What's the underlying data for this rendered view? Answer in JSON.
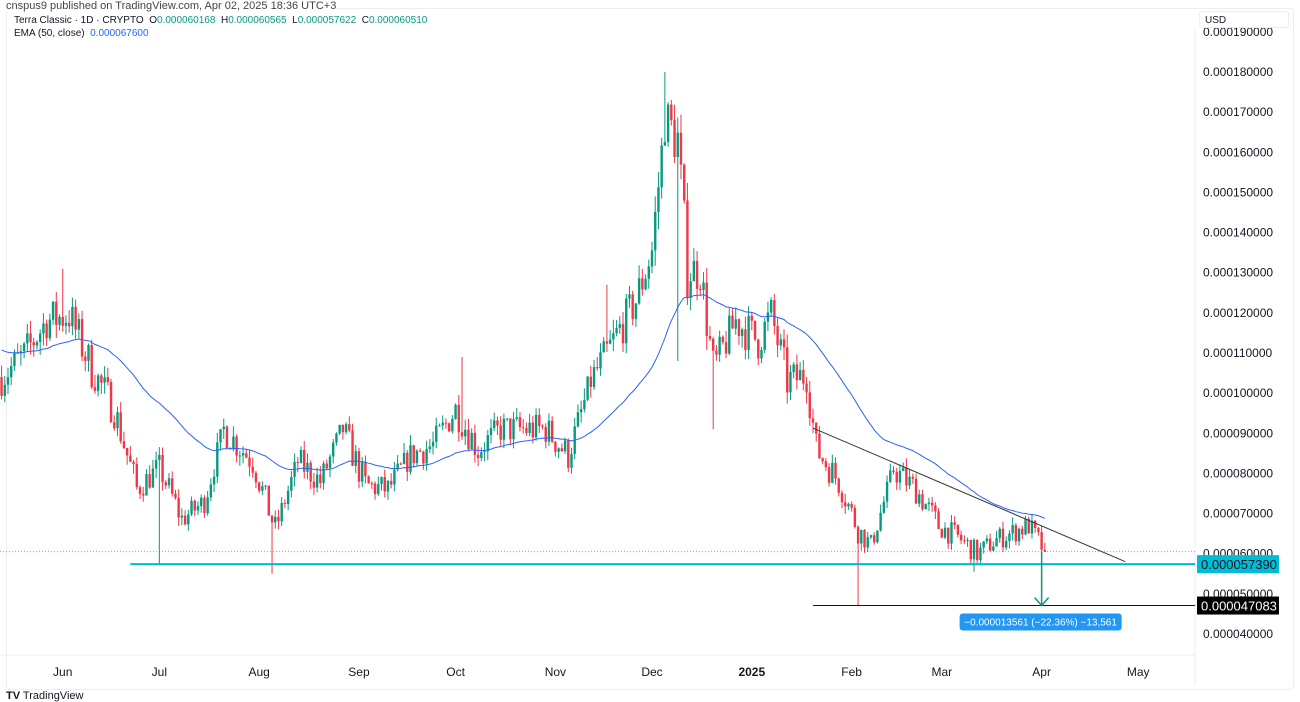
{
  "published": "cnspus9 published on TradingView.com, Apr 02, 2025 18:36 UTC+3",
  "legend": {
    "symbol": "Terra Classic · 1D · CRYPTO",
    "o_label": "O",
    "o": "0.000060168",
    "h_label": "H",
    "h": "0.000060565",
    "l_label": "L",
    "l": "0.000057622",
    "c_label": "C",
    "c": "0.000060510",
    "ema_label": "EMA (50, close)",
    "ema": "0.000067600"
  },
  "currency": "USD",
  "brand": "TradingView",
  "colors": {
    "up": "#089981",
    "down": "#f23645",
    "ema": "#2962ff",
    "support": "#00bcd4",
    "measure": "#2196f3"
  },
  "chart_data": {
    "type": "candlestick",
    "unit": "1e-6 USD",
    "y_ticks": [
      "0.000040000",
      "0.000050000",
      "0.000060000",
      "0.000070000",
      "0.000080000",
      "0.000090000",
      "0.000100000",
      "0.000110000",
      "0.000120000",
      "0.000130000",
      "0.000140000",
      "0.000150000",
      "0.000160000",
      "0.000170000",
      "0.000180000",
      "0.000190000"
    ],
    "ylim": [
      37,
      190
    ],
    "x_labels": [
      {
        "label": "Jun",
        "date": "2024-06-01"
      },
      {
        "label": "Jul",
        "date": "2024-07-01"
      },
      {
        "label": "Aug",
        "date": "2024-08-01"
      },
      {
        "label": "Sep",
        "date": "2024-09-01"
      },
      {
        "label": "Oct",
        "date": "2024-10-01"
      },
      {
        "label": "Nov",
        "date": "2024-11-01"
      },
      {
        "label": "Dec",
        "date": "2024-12-01"
      },
      {
        "label": "2025",
        "date": "2025-01-01"
      },
      {
        "label": "Feb",
        "date": "2025-02-01"
      },
      {
        "label": "Mar",
        "date": "2025-03-01"
      },
      {
        "label": "Apr",
        "date": "2025-04-01"
      },
      {
        "label": "May",
        "date": "2025-05-01"
      }
    ],
    "close_anchors": [
      [
        "2024-05-13",
        104
      ],
      [
        "2024-05-20",
        109.5
      ],
      [
        "2024-05-27",
        118
      ],
      [
        "2024-06-03",
        119.5
      ],
      [
        "2024-06-10",
        106
      ],
      [
        "2024-06-17",
        96
      ],
      [
        "2024-06-24",
        76
      ],
      [
        "2024-07-01",
        81.5
      ],
      [
        "2024-07-08",
        68.5
      ],
      [
        "2024-07-15",
        73
      ],
      [
        "2024-07-21",
        91
      ],
      [
        "2024-07-30",
        83
      ],
      [
        "2024-08-06",
        66
      ],
      [
        "2024-08-13",
        83
      ],
      [
        "2024-08-20",
        78
      ],
      [
        "2024-08-27",
        91
      ],
      [
        "2024-09-03",
        77
      ],
      [
        "2024-09-10",
        76
      ],
      [
        "2024-09-17",
        84.5
      ],
      [
        "2024-09-24",
        87
      ],
      [
        "2024-10-01",
        96
      ],
      [
        "2024-10-08",
        86
      ],
      [
        "2024-10-15",
        91
      ],
      [
        "2024-10-22",
        91
      ],
      [
        "2024-10-29",
        91
      ],
      [
        "2024-11-05",
        84.5
      ],
      [
        "2024-11-12",
        103
      ],
      [
        "2024-11-19",
        113
      ],
      [
        "2024-11-26",
        123
      ],
      [
        "2024-12-01",
        135.5
      ],
      [
        "2024-12-05",
        168
      ],
      [
        "2024-12-09",
        163
      ],
      [
        "2024-12-12",
        130.5
      ],
      [
        "2024-12-16",
        130.5
      ],
      [
        "2024-12-20",
        106
      ],
      [
        "2024-12-27",
        118
      ],
      [
        "2025-01-03",
        113
      ],
      [
        "2025-01-07",
        119.5
      ],
      [
        "2025-01-12",
        103
      ],
      [
        "2025-01-18",
        104.5
      ],
      [
        "2025-01-21",
        86
      ],
      [
        "2025-01-28",
        78
      ],
      [
        "2025-02-03",
        66
      ],
      [
        "2025-02-07",
        62
      ],
      [
        "2025-02-14",
        81
      ],
      [
        "2025-02-21",
        76
      ],
      [
        "2025-02-28",
        67
      ],
      [
        "2025-03-07",
        63.5
      ],
      [
        "2025-03-12",
        60
      ],
      [
        "2025-03-18",
        63.5
      ],
      [
        "2025-03-25",
        66
      ],
      [
        "2025-03-28",
        67
      ],
      [
        "2025-04-02",
        60.51
      ]
    ],
    "wick_extremes": [
      [
        "2024-06-01",
        "high",
        131
      ],
      [
        "2024-07-01",
        "low",
        57.5
      ],
      [
        "2024-08-05",
        "low",
        55
      ],
      [
        "2024-10-03",
        "high",
        109
      ],
      [
        "2024-11-17",
        "high",
        127
      ],
      [
        "2024-12-05",
        "high",
        180
      ],
      [
        "2024-12-09",
        "low",
        108
      ],
      [
        "2024-12-20",
        "low",
        91
      ],
      [
        "2025-02-03",
        "low",
        47.08
      ],
      [
        "2025-03-11",
        "low",
        55.5
      ]
    ],
    "ema_period": 50,
    "last_price": 60.51,
    "drawings": {
      "support": {
        "value": 57.39,
        "label": "0.000057390",
        "from": "2024-06-22"
      },
      "target": {
        "value": 47.083,
        "label": "0.000047083",
        "from": "2025-01-20"
      },
      "trendline": {
        "from": [
          "2025-01-20",
          91.3
        ],
        "to": [
          "2025-04-27",
          58
        ]
      },
      "measure": {
        "date": "2025-04-01",
        "from_value": 60.6,
        "to_value": 47.083,
        "label": "−0.000013561 (−22.36%) −13,561"
      }
    }
  }
}
